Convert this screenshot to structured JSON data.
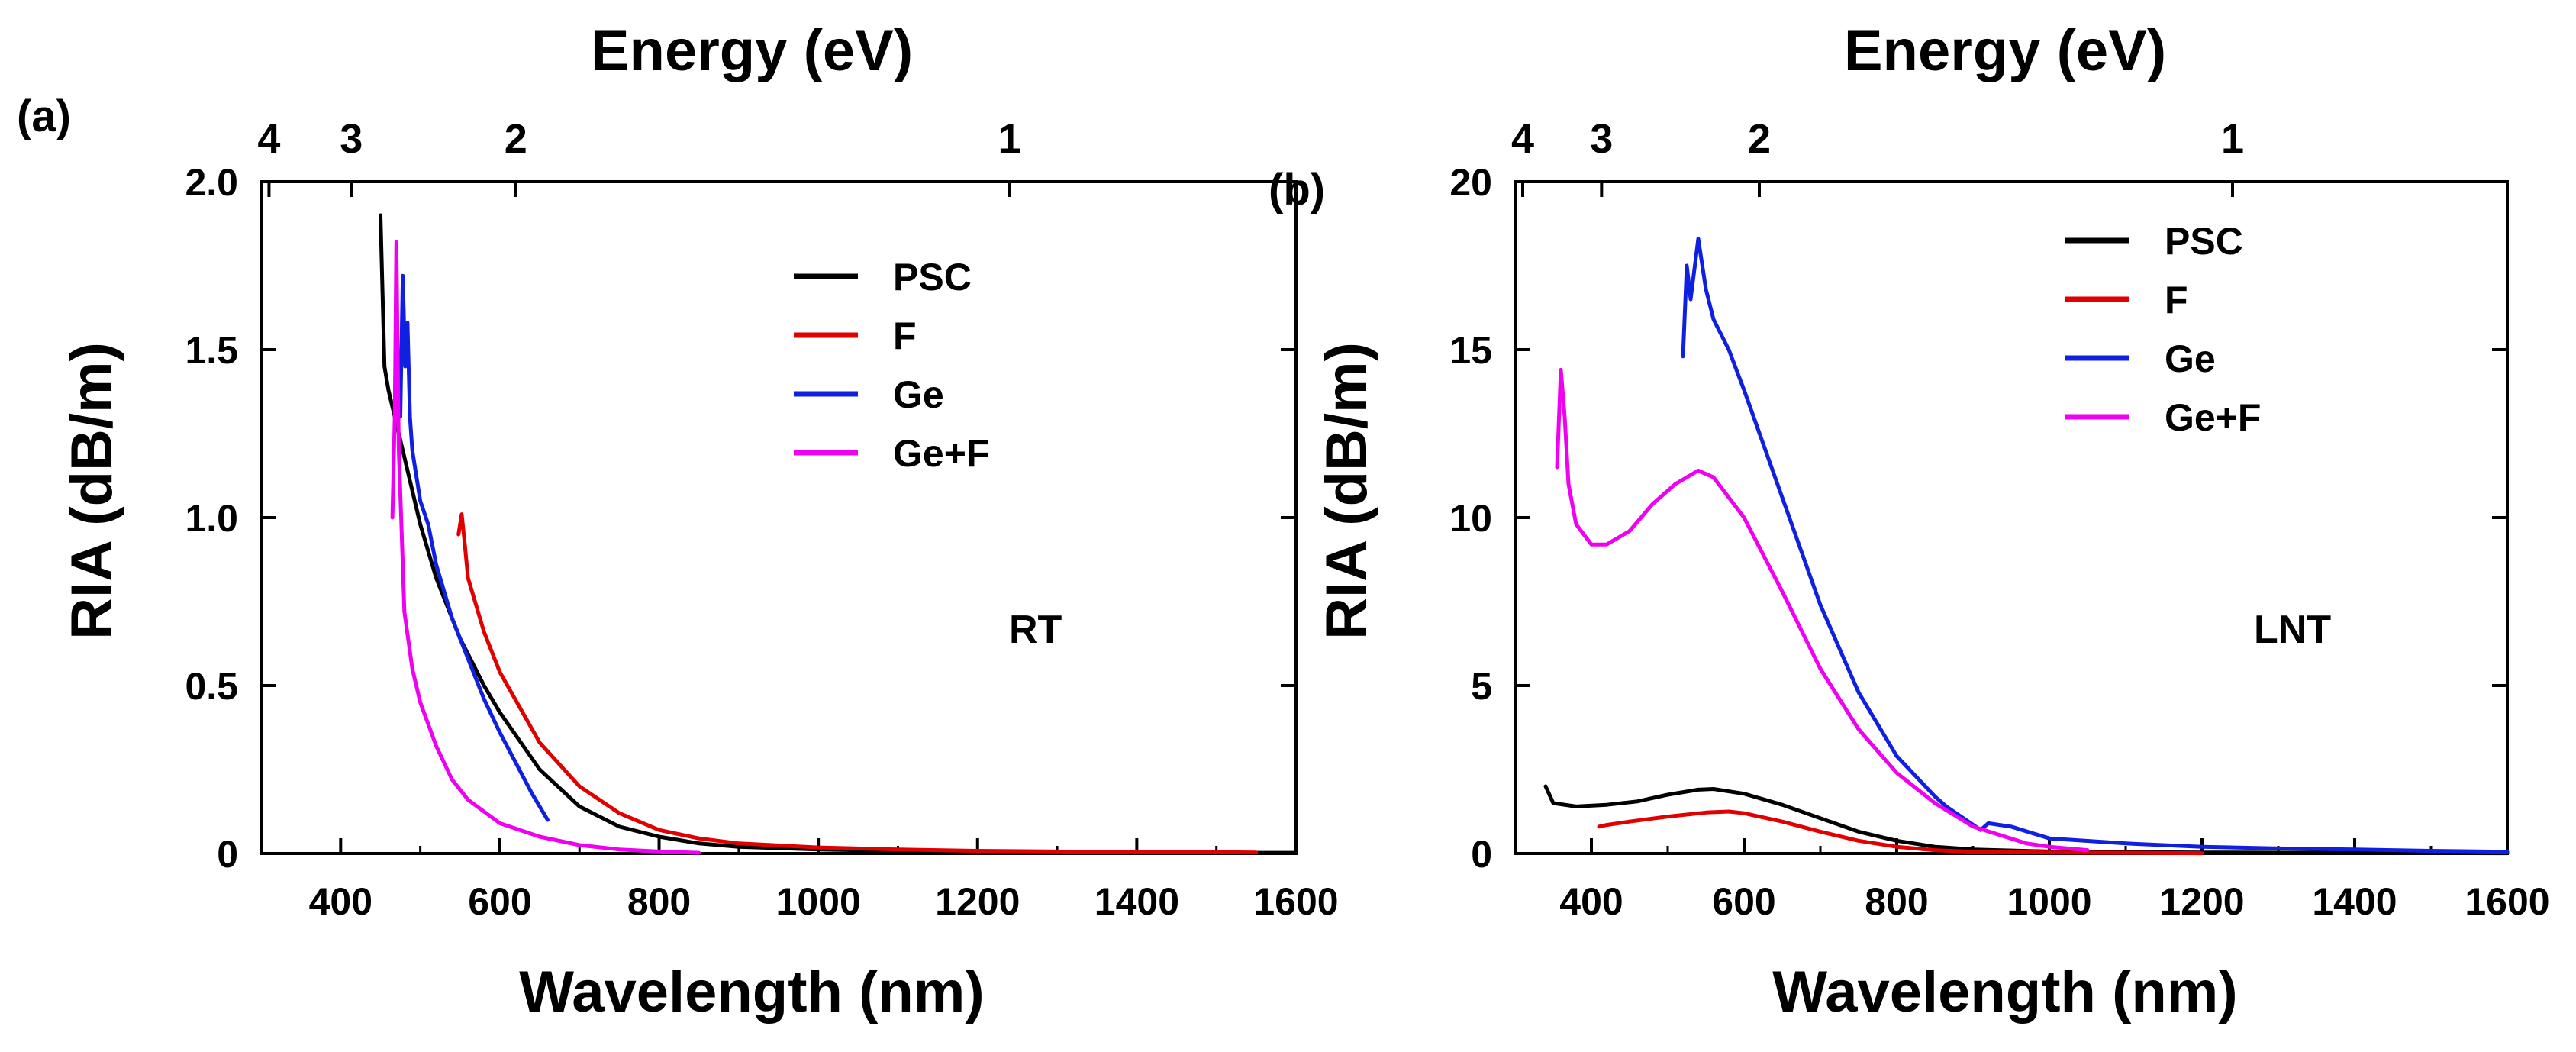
{
  "figure": {
    "panel_a_label": "(a)",
    "panel_b_label": "(b)"
  },
  "chart_data": [
    {
      "type": "line",
      "panel": "(a)",
      "title": "",
      "top_axis_title": "Energy (eV)",
      "top_ticks": [
        "4",
        "3",
        "2",
        "1"
      ],
      "top_tick_values_eV": [
        4,
        3,
        2,
        1
      ],
      "xlabel": "Wavelength (nm)",
      "ylabel": "RIA (dB/m)",
      "xlim": [
        300,
        1600
      ],
      "ylim": [
        0,
        2.0
      ],
      "x_ticks": [
        "400",
        "600",
        "800",
        "1000",
        "1200",
        "1400",
        "1600"
      ],
      "x_tick_values": [
        400,
        600,
        800,
        1000,
        1200,
        1400,
        1600
      ],
      "y_ticks": [
        "0",
        "0.5",
        "1.0",
        "1.5",
        "2.0"
      ],
      "y_tick_values": [
        0,
        0.5,
        1.0,
        1.5,
        2.0
      ],
      "legend_position": "top-right",
      "annotation": "RT",
      "series": [
        {
          "name": "PSC",
          "color": "#000000",
          "x": [
            450,
            455,
            460,
            470,
            480,
            500,
            520,
            550,
            580,
            600,
            650,
            700,
            750,
            800,
            850,
            900,
            1000,
            1100,
            1200,
            1300,
            1400,
            1500,
            1550,
            1600
          ],
          "y": [
            1.9,
            1.45,
            1.38,
            1.28,
            1.18,
            0.98,
            0.82,
            0.64,
            0.5,
            0.42,
            0.25,
            0.14,
            0.08,
            0.05,
            0.03,
            0.02,
            0.012,
            0.008,
            0.006,
            0.005,
            0.004,
            0.003,
            0.002,
            0.002
          ]
        },
        {
          "name": "F",
          "color": "#e00000",
          "x": [
            548,
            552,
            556,
            560,
            580,
            600,
            650,
            700,
            750,
            800,
            850,
            900,
            1000,
            1100,
            1200,
            1300,
            1400,
            1500,
            1550
          ],
          "y": [
            0.95,
            1.01,
            0.92,
            0.82,
            0.66,
            0.54,
            0.33,
            0.2,
            0.12,
            0.07,
            0.045,
            0.03,
            0.018,
            0.012,
            0.008,
            0.006,
            0.005,
            0.004,
            0.003
          ]
        },
        {
          "name": "Ge",
          "color": "#1020e0",
          "x": [
            475,
            478,
            481,
            484,
            487,
            490,
            500,
            510,
            520,
            540,
            560,
            580,
            600,
            620,
            640,
            660
          ],
          "y": [
            1.3,
            1.72,
            1.45,
            1.58,
            1.3,
            1.2,
            1.05,
            0.98,
            0.86,
            0.7,
            0.58,
            0.46,
            0.36,
            0.27,
            0.18,
            0.1
          ]
        },
        {
          "name": "Ge+F",
          "color": "#f000f0",
          "x": [
            465,
            468,
            470,
            473,
            476,
            480,
            490,
            500,
            520,
            540,
            560,
            600,
            650,
            700,
            750,
            800,
            850
          ],
          "y": [
            1.0,
            1.3,
            1.82,
            1.2,
            1.0,
            0.72,
            0.55,
            0.45,
            0.32,
            0.22,
            0.16,
            0.09,
            0.05,
            0.025,
            0.012,
            0.006,
            0.002
          ]
        }
      ]
    },
    {
      "type": "line",
      "panel": "(b)",
      "title": "",
      "top_axis_title": "Energy (eV)",
      "top_ticks": [
        "4",
        "3",
        "2",
        "1"
      ],
      "top_tick_values_eV": [
        4,
        3,
        2,
        1
      ],
      "xlabel": "Wavelength (nm)",
      "ylabel": "RIA (dB/m)",
      "xlim": [
        300,
        1600
      ],
      "ylim": [
        0,
        20
      ],
      "x_ticks": [
        "400",
        "600",
        "800",
        "1000",
        "1200",
        "1400",
        "1600"
      ],
      "x_tick_values": [
        400,
        600,
        800,
        1000,
        1200,
        1400,
        1600
      ],
      "y_ticks": [
        "0",
        "5",
        "10",
        "15",
        "20"
      ],
      "y_tick_values": [
        0,
        5,
        10,
        15,
        20
      ],
      "legend_position": "top-right",
      "annotation": "LNT",
      "series": [
        {
          "name": "PSC",
          "color": "#000000",
          "x": [
            340,
            350,
            380,
            420,
            460,
            500,
            540,
            560,
            600,
            650,
            700,
            750,
            800,
            850,
            900,
            1000,
            1100,
            1200,
            1400,
            1600
          ],
          "y": [
            2.0,
            1.5,
            1.4,
            1.45,
            1.55,
            1.75,
            1.9,
            1.92,
            1.78,
            1.45,
            1.05,
            0.65,
            0.38,
            0.2,
            0.12,
            0.06,
            0.04,
            0.03,
            0.02,
            0.01
          ]
        },
        {
          "name": "F",
          "color": "#e00000",
          "x": [
            410,
            420,
            450,
            500,
            550,
            580,
            600,
            650,
            700,
            750,
            800,
            850,
            900,
            1000,
            1100,
            1200
          ],
          "y": [
            0.8,
            0.85,
            0.95,
            1.1,
            1.22,
            1.25,
            1.2,
            0.95,
            0.65,
            0.38,
            0.2,
            0.1,
            0.05,
            0.03,
            0.02,
            0.01
          ]
        },
        {
          "name": "Ge",
          "color": "#1020e0",
          "x": [
            520,
            525,
            530,
            540,
            550,
            560,
            580,
            600,
            650,
            700,
            750,
            800,
            850,
            865,
            910,
            920,
            950,
            1000,
            1100,
            1200,
            1300,
            1400,
            1500,
            1600
          ],
          "y": [
            14.8,
            17.5,
            16.5,
            18.3,
            16.8,
            15.9,
            15.0,
            13.8,
            10.6,
            7.4,
            4.8,
            2.9,
            1.7,
            1.4,
            0.7,
            0.9,
            0.8,
            0.45,
            0.3,
            0.2,
            0.15,
            0.12,
            0.08,
            0.05
          ]
        },
        {
          "name": "Ge+F",
          "color": "#f000f0",
          "x": [
            355,
            360,
            365,
            370,
            380,
            400,
            420,
            450,
            480,
            510,
            540,
            560,
            600,
            650,
            700,
            750,
            800,
            850,
            900,
            970,
            1000,
            1050
          ],
          "y": [
            11.5,
            14.4,
            13.0,
            11.0,
            9.8,
            9.2,
            9.2,
            9.6,
            10.4,
            11.0,
            11.4,
            11.2,
            10.0,
            7.8,
            5.5,
            3.7,
            2.4,
            1.5,
            0.8,
            0.3,
            0.2,
            0.1
          ]
        }
      ]
    }
  ]
}
